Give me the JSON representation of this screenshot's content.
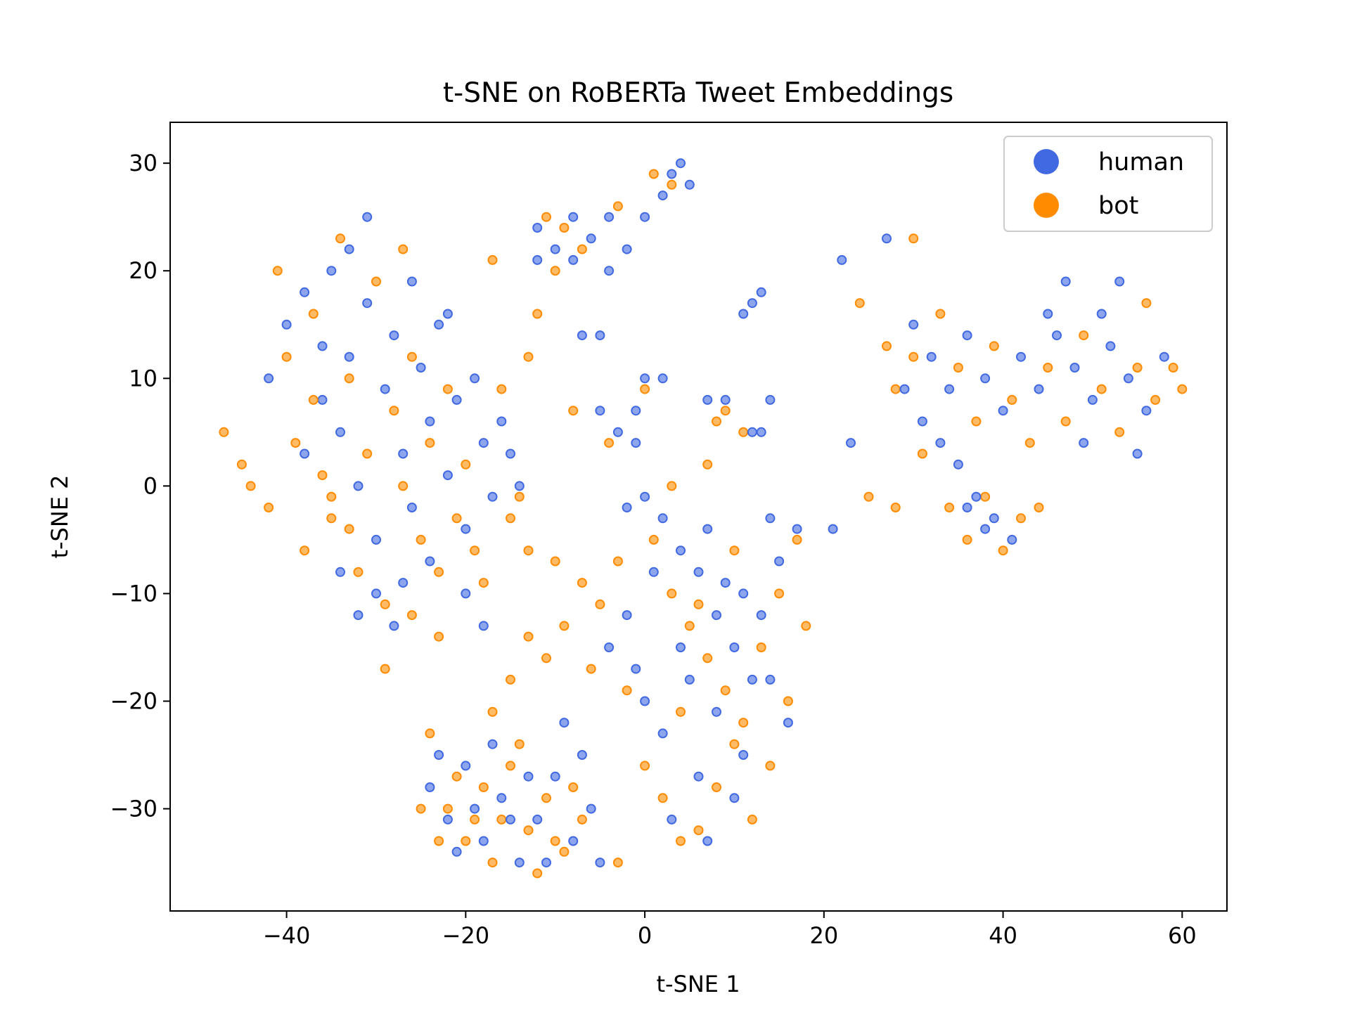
{
  "chart_data": {
    "type": "scatter",
    "title": "t-SNE on RoBERTa Tweet Embeddings",
    "xlabel": "t-SNE 1",
    "ylabel": "t-SNE 2",
    "xlim": [
      -53,
      65
    ],
    "ylim": [
      -39.5,
      33.8
    ],
    "xticks": [
      -40,
      -20,
      0,
      20,
      40,
      60
    ],
    "xtick_labels": [
      "−40",
      "−20",
      "0",
      "20",
      "40",
      "60"
    ],
    "yticks": [
      -30,
      -20,
      -10,
      0,
      10,
      20,
      30
    ],
    "ytick_labels": [
      "−30",
      "−20",
      "−10",
      "0",
      "10",
      "20",
      "30"
    ],
    "grid": false,
    "legend_position": "top-right",
    "colors": {
      "human": "#4169e1",
      "bot": "#ff8c00"
    },
    "series": [
      {
        "name": "human",
        "color": "#4169e1",
        "points": [
          [
            -42,
            10
          ],
          [
            -40,
            15
          ],
          [
            -38,
            18
          ],
          [
            -36,
            8
          ],
          [
            -35,
            20
          ],
          [
            -34,
            5
          ],
          [
            -33,
            12
          ],
          [
            -32,
            0
          ],
          [
            -31,
            17
          ],
          [
            -30,
            -5
          ],
          [
            -29,
            9
          ],
          [
            -28,
            14
          ],
          [
            -27,
            3
          ],
          [
            -26,
            -2
          ],
          [
            -25,
            11
          ],
          [
            -24,
            6
          ],
          [
            -23,
            15
          ],
          [
            -22,
            1
          ],
          [
            -21,
            8
          ],
          [
            -20,
            -4
          ],
          [
            -19,
            10
          ],
          [
            -18,
            4
          ],
          [
            -17,
            -1
          ],
          [
            -16,
            6
          ],
          [
            -15,
            3
          ],
          [
            -14,
            0
          ],
          [
            -30,
            -10
          ],
          [
            -32,
            -12
          ],
          [
            -28,
            -13
          ],
          [
            -34,
            -8
          ],
          [
            -36,
            13
          ],
          [
            -38,
            3
          ],
          [
            -33,
            22
          ],
          [
            -31,
            25
          ],
          [
            -26,
            19
          ],
          [
            -22,
            16
          ],
          [
            -24,
            -7
          ],
          [
            -20,
            -10
          ],
          [
            -18,
            -13
          ],
          [
            -27,
            -9
          ],
          [
            -12,
            24
          ],
          [
            -10,
            22
          ],
          [
            -8,
            25
          ],
          [
            -6,
            23
          ],
          [
            -4,
            20
          ],
          [
            -2,
            22
          ],
          [
            0,
            25
          ],
          [
            2,
            27
          ],
          [
            3,
            29
          ],
          [
            4,
            30
          ],
          [
            -12,
            21
          ],
          [
            -8,
            21
          ],
          [
            -4,
            25
          ],
          [
            5,
            28
          ],
          [
            13,
            18
          ],
          [
            12,
            17
          ],
          [
            11,
            16
          ],
          [
            -7,
            14
          ],
          [
            -5,
            14
          ],
          [
            -5,
            7
          ],
          [
            -3,
            5
          ],
          [
            0,
            10
          ],
          [
            2,
            10
          ],
          [
            7,
            8
          ],
          [
            9,
            8
          ],
          [
            14,
            8
          ],
          [
            13,
            5
          ],
          [
            12,
            5
          ],
          [
            -2,
            -2
          ],
          [
            0,
            -1
          ],
          [
            2,
            -3
          ],
          [
            4,
            -6
          ],
          [
            6,
            -8
          ],
          [
            8,
            -12
          ],
          [
            10,
            -15
          ],
          [
            12,
            -18
          ],
          [
            4,
            -15
          ],
          [
            -2,
            -12
          ],
          [
            0,
            -20
          ],
          [
            2,
            -23
          ],
          [
            5,
            -18
          ],
          [
            8,
            -21
          ],
          [
            11,
            -25
          ],
          [
            6,
            -27
          ],
          [
            3,
            -31
          ],
          [
            7,
            -33
          ],
          [
            -1,
            -17
          ],
          [
            9,
            -9
          ],
          [
            13,
            -12
          ],
          [
            15,
            -7
          ],
          [
            14,
            -3
          ],
          [
            16,
            -22
          ],
          [
            11,
            -10
          ],
          [
            1,
            -8
          ],
          [
            7,
            -4
          ],
          [
            -4,
            -15
          ],
          [
            14,
            -18
          ],
          [
            10,
            -29
          ],
          [
            -24,
            -28
          ],
          [
            -22,
            -31
          ],
          [
            -20,
            -26
          ],
          [
            -18,
            -33
          ],
          [
            -16,
            -29
          ],
          [
            -14,
            -35
          ],
          [
            -12,
            -31
          ],
          [
            -10,
            -27
          ],
          [
            -8,
            -33
          ],
          [
            -6,
            -30
          ],
          [
            -13,
            -27
          ],
          [
            -17,
            -24
          ],
          [
            -21,
            -34
          ],
          [
            -9,
            -22
          ],
          [
            -11,
            -35
          ],
          [
            -15,
            -31
          ],
          [
            -7,
            -25
          ],
          [
            -19,
            -30
          ],
          [
            -5,
            -35
          ],
          [
            -23,
            -25
          ],
          [
            30,
            15
          ],
          [
            32,
            12
          ],
          [
            34,
            9
          ],
          [
            36,
            14
          ],
          [
            38,
            10
          ],
          [
            40,
            7
          ],
          [
            42,
            12
          ],
          [
            44,
            9
          ],
          [
            46,
            14
          ],
          [
            48,
            11
          ],
          [
            50,
            8
          ],
          [
            52,
            13
          ],
          [
            54,
            10
          ],
          [
            56,
            7
          ],
          [
            58,
            12
          ],
          [
            33,
            4
          ],
          [
            35,
            2
          ],
          [
            37,
            -1
          ],
          [
            39,
            -3
          ],
          [
            41,
            -5
          ],
          [
            38,
            -4
          ],
          [
            36,
            -2
          ],
          [
            31,
            6
          ],
          [
            47,
            19
          ],
          [
            53,
            19
          ],
          [
            49,
            4
          ],
          [
            55,
            3
          ],
          [
            29,
            9
          ],
          [
            45,
            16
          ],
          [
            51,
            16
          ],
          [
            22,
            21
          ],
          [
            27,
            23
          ],
          [
            23,
            4
          ],
          [
            21,
            -4
          ],
          [
            17,
            -4
          ],
          [
            -1,
            4
          ],
          [
            -1,
            7
          ]
        ]
      },
      {
        "name": "bot",
        "color": "#ff8c00",
        "points": [
          [
            -47,
            5
          ],
          [
            -45,
            2
          ],
          [
            -44,
            0
          ],
          [
            -42,
            -2
          ],
          [
            -41,
            20
          ],
          [
            -40,
            12
          ],
          [
            -39,
            4
          ],
          [
            -38,
            -6
          ],
          [
            -37,
            16
          ],
          [
            -36,
            1
          ],
          [
            -35,
            -3
          ],
          [
            -34,
            23
          ],
          [
            -33,
            10
          ],
          [
            -32,
            -8
          ],
          [
            -31,
            3
          ],
          [
            -30,
            19
          ],
          [
            -29,
            -11
          ],
          [
            -28,
            7
          ],
          [
            -27,
            0
          ],
          [
            -26,
            12
          ],
          [
            -25,
            -5
          ],
          [
            -24,
            4
          ],
          [
            -23,
            -14
          ],
          [
            -22,
            9
          ],
          [
            -21,
            -3
          ],
          [
            -20,
            2
          ],
          [
            -19,
            -6
          ],
          [
            -18,
            -9
          ],
          [
            -17,
            21
          ],
          [
            -16,
            9
          ],
          [
            -15,
            -3
          ],
          [
            -14,
            -1
          ],
          [
            -13,
            -6
          ],
          [
            -29,
            -17
          ],
          [
            -26,
            -12
          ],
          [
            -33,
            -4
          ],
          [
            -37,
            8
          ],
          [
            -27,
            22
          ],
          [
            -35,
            -1
          ],
          [
            -23,
            -8
          ],
          [
            -11,
            25
          ],
          [
            -9,
            24
          ],
          [
            -7,
            22
          ],
          [
            -3,
            26
          ],
          [
            -10,
            20
          ],
          [
            -12,
            16
          ],
          [
            1,
            29
          ],
          [
            3,
            28
          ],
          [
            0,
            9
          ],
          [
            9,
            7
          ],
          [
            11,
            5
          ],
          [
            8,
            6
          ],
          [
            -13,
            12
          ],
          [
            -8,
            7
          ],
          [
            -4,
            4
          ],
          [
            3,
            0
          ],
          [
            7,
            2
          ],
          [
            -10,
            -7
          ],
          [
            -7,
            -9
          ],
          [
            -5,
            -11
          ],
          [
            -9,
            -13
          ],
          [
            -11,
            -16
          ],
          [
            -13,
            -14
          ],
          [
            -15,
            -18
          ],
          [
            -17,
            -21
          ],
          [
            -6,
            -17
          ],
          [
            -3,
            -7
          ],
          [
            1,
            -5
          ],
          [
            3,
            -10
          ],
          [
            5,
            -13
          ],
          [
            7,
            -16
          ],
          [
            9,
            -19
          ],
          [
            11,
            -22
          ],
          [
            13,
            -15
          ],
          [
            15,
            -10
          ],
          [
            17,
            -5
          ],
          [
            18,
            -13
          ],
          [
            16,
            -20
          ],
          [
            14,
            -26
          ],
          [
            12,
            -31
          ],
          [
            10,
            -24
          ],
          [
            8,
            -28
          ],
          [
            6,
            -32
          ],
          [
            4,
            -33
          ],
          [
            2,
            -29
          ],
          [
            0,
            -26
          ],
          [
            -2,
            -19
          ],
          [
            4,
            -21
          ],
          [
            6,
            -11
          ],
          [
            10,
            -6
          ],
          [
            -25,
            -30
          ],
          [
            -23,
            -33
          ],
          [
            -21,
            -27
          ],
          [
            -19,
            -31
          ],
          [
            -17,
            -35
          ],
          [
            -15,
            -26
          ],
          [
            -13,
            -32
          ],
          [
            -11,
            -29
          ],
          [
            -9,
            -34
          ],
          [
            -7,
            -31
          ],
          [
            -14,
            -24
          ],
          [
            -18,
            -28
          ],
          [
            -20,
            -33
          ],
          [
            -12,
            -36
          ],
          [
            -16,
            -31
          ],
          [
            -22,
            -30
          ],
          [
            -8,
            -28
          ],
          [
            -10,
            -33
          ],
          [
            -24,
            -23
          ],
          [
            -3,
            -35
          ],
          [
            28,
            9
          ],
          [
            30,
            12
          ],
          [
            31,
            3
          ],
          [
            33,
            16
          ],
          [
            35,
            11
          ],
          [
            37,
            6
          ],
          [
            39,
            13
          ],
          [
            41,
            8
          ],
          [
            43,
            4
          ],
          [
            45,
            11
          ],
          [
            47,
            6
          ],
          [
            49,
            14
          ],
          [
            51,
            9
          ],
          [
            53,
            5
          ],
          [
            55,
            11
          ],
          [
            57,
            8
          ],
          [
            59,
            11
          ],
          [
            60,
            9
          ],
          [
            34,
            -2
          ],
          [
            36,
            -5
          ],
          [
            38,
            -1
          ],
          [
            40,
            -6
          ],
          [
            42,
            -3
          ],
          [
            44,
            -2
          ],
          [
            30,
            23
          ],
          [
            27,
            13
          ],
          [
            24,
            17
          ],
          [
            25,
            -1
          ],
          [
            28,
            -2
          ],
          [
            56,
            17
          ]
        ]
      }
    ]
  }
}
